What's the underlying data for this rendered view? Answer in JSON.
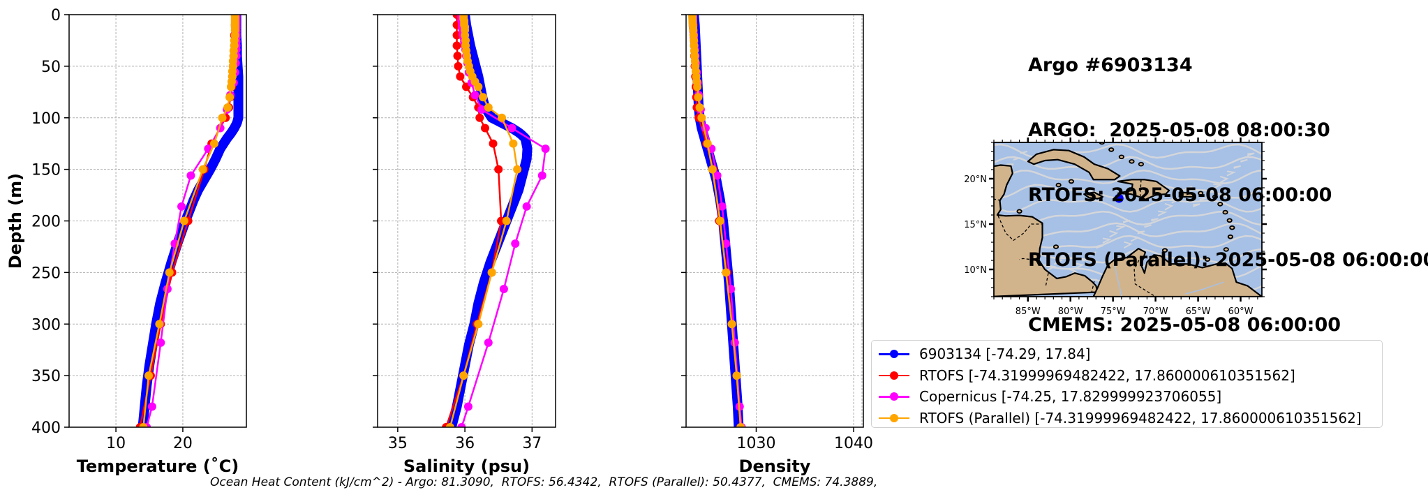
{
  "colors": {
    "argo": "#0000ff",
    "rtofs": "#ff0000",
    "copernicus": "#ff00ff",
    "rtofs_parallel": "#ffa500",
    "ocean": "#a6c0e6",
    "land": "#d2b48c",
    "streams": "#d9d9d9"
  },
  "title_lines": [
    "Argo #6903134",
    "ARGO:  2025-05-08 08:00:30",
    "RTOFS: 2025-05-08 06:00:00",
    "RTOFS (Parallel): 2025-05-08 06:00:00",
    "CMEMS: 2025-05-08 06:00:00"
  ],
  "footer": "Ocean Heat Content (kJ/cm^2) - Argo: 81.3090,  RTOFS: 56.4342,  RTOFS (Parallel): 50.4377,  CMEMS: 74.3889,",
  "legend": [
    {
      "key": "argo",
      "label": "6903134 [-74.29, 17.84]"
    },
    {
      "key": "rtofs",
      "label": "RTOFS [-74.31999969482422, 17.860000610351562]"
    },
    {
      "key": "copernicus",
      "label": "Copernicus [-74.25, 17.829999923706055]"
    },
    {
      "key": "rtofs_parallel",
      "label": "RTOFS (Parallel) [-74.31999969482422, 17.860000610351562]"
    }
  ],
  "map": {
    "x_ticks": [
      "85°W",
      "80°W",
      "75°W",
      "70°W",
      "65°W",
      "60°W"
    ],
    "x_tick_lons": [
      -85,
      -80,
      -75,
      -70,
      -65,
      -60
    ],
    "y_ticks": [
      "20°N",
      "15°N",
      "10°N"
    ],
    "y_tick_lats": [
      20,
      15,
      10
    ],
    "lon_range": [
      -89,
      -57.5
    ],
    "lat_range": [
      7,
      24
    ],
    "marker": {
      "lon": -74.29,
      "lat": 17.84
    }
  },
  "chart_data": [
    {
      "type": "line",
      "xlabel": "Temperature (˚C)",
      "ylabel": "Depth (m)",
      "xlim": [
        3,
        29.5
      ],
      "ylim": [
        400,
        0
      ],
      "xticks": [
        10,
        20
      ],
      "yticks": [
        0,
        50,
        100,
        150,
        200,
        250,
        300,
        350,
        400
      ],
      "grid": true,
      "series": [
        {
          "key": "argo",
          "name": "6903134 [-74.29, 17.84]",
          "dense": true,
          "depth": [
            0,
            10,
            20,
            30,
            40,
            50,
            60,
            70,
            80,
            90,
            100,
            105,
            110,
            115,
            120,
            130,
            140,
            150,
            160,
            170,
            180,
            190,
            200,
            220,
            240,
            260,
            280,
            300,
            320,
            340,
            360,
            380,
            400
          ],
          "values": [
            28.0,
            28.0,
            28.0,
            28.1,
            28.1,
            28.2,
            28.3,
            28.3,
            28.3,
            28.3,
            28.3,
            28.1,
            27.7,
            27.2,
            26.6,
            25.6,
            24.9,
            24.1,
            23.2,
            22.3,
            21.6,
            21.0,
            20.4,
            19.3,
            18.3,
            17.4,
            16.6,
            16.0,
            15.5,
            15.0,
            14.6,
            14.3,
            14.0
          ]
        },
        {
          "key": "rtofs",
          "name": "RTOFS [-74.31999969482422, 17.860000610351562]",
          "depth": [
            0,
            10,
            20,
            30,
            40,
            50,
            60,
            70,
            80,
            90,
            100,
            125,
            150,
            200,
            250,
            300,
            350,
            400
          ],
          "values": [
            27.8,
            27.8,
            27.7,
            27.7,
            27.6,
            27.5,
            27.4,
            27.3,
            27.1,
            26.9,
            26.4,
            24.3,
            23.2,
            20.8,
            18.4,
            16.7,
            15.2,
            13.6
          ]
        },
        {
          "key": "copernicus",
          "name": "Copernicus [-74.25, 17.829999923706055]",
          "depth": [
            0,
            1,
            2,
            3,
            5,
            6,
            7,
            8,
            9,
            11,
            13,
            16,
            19,
            22,
            26,
            30,
            34,
            40,
            47,
            56,
            66,
            78,
            92,
            110,
            130,
            156,
            186,
            222,
            266,
            318,
            380,
            400
          ],
          "values": [
            28.0,
            28.0,
            28.0,
            28.0,
            28.0,
            28.0,
            28.0,
            28.0,
            28.0,
            28.0,
            28.0,
            28.0,
            28.0,
            28.0,
            28.0,
            28.0,
            28.0,
            28.0,
            27.9,
            27.8,
            27.6,
            27.1,
            26.6,
            25.6,
            23.8,
            21.2,
            19.8,
            18.8,
            17.7,
            16.7,
            15.4,
            14.6
          ]
        },
        {
          "key": "rtofs_parallel",
          "name": "RTOFS (Parallel) [-74.31999969482422, 17.860000610351562]",
          "depth": [
            0,
            2,
            4,
            6,
            8,
            10,
            12,
            15,
            20,
            25,
            30,
            35,
            40,
            45,
            50,
            55,
            60,
            65,
            70,
            80,
            90,
            100,
            125,
            150,
            200,
            250,
            300,
            350,
            400
          ],
          "values": [
            27.8,
            27.8,
            27.8,
            27.8,
            27.8,
            27.8,
            27.8,
            27.8,
            27.8,
            27.7,
            27.7,
            27.6,
            27.6,
            27.5,
            27.5,
            27.4,
            27.4,
            27.3,
            27.2,
            27.0,
            26.7,
            25.9,
            24.7,
            23.0,
            20.2,
            18.0,
            16.5,
            14.9,
            14.1
          ]
        }
      ]
    },
    {
      "type": "line",
      "xlabel": "Salinity (psu)",
      "ylabel": "",
      "xlim": [
        34.7,
        37.35
      ],
      "ylim": [
        400,
        0
      ],
      "xticks": [
        35,
        36,
        37
      ],
      "yticks": [
        0,
        50,
        100,
        150,
        200,
        250,
        300,
        350,
        400
      ],
      "grid": true,
      "series": [
        {
          "key": "argo",
          "name": "6903134 [-74.29, 17.84]",
          "dense": true,
          "depth": [
            0,
            10,
            20,
            30,
            40,
            50,
            60,
            70,
            80,
            90,
            100,
            105,
            110,
            115,
            120,
            130,
            140,
            150,
            160,
            170,
            180,
            190,
            200,
            220,
            240,
            260,
            280,
            300,
            320,
            340,
            360,
            380,
            400
          ],
          "values": [
            36.0,
            36.02,
            36.05,
            36.08,
            36.12,
            36.16,
            36.2,
            36.23,
            36.26,
            36.3,
            36.4,
            36.55,
            36.7,
            36.82,
            36.9,
            36.93,
            36.92,
            36.88,
            36.84,
            36.8,
            36.74,
            36.68,
            36.62,
            36.5,
            36.38,
            36.28,
            36.2,
            36.14,
            36.06,
            36.0,
            35.94,
            35.88,
            35.8
          ]
        },
        {
          "key": "rtofs",
          "name": "RTOFS [-74.31999969482422, 17.860000610351562]",
          "depth": [
            0,
            10,
            20,
            30,
            40,
            50,
            60,
            70,
            80,
            90,
            100,
            110,
            125,
            150,
            200,
            250,
            300,
            350,
            400
          ],
          "values": [
            35.88,
            35.88,
            35.88,
            35.88,
            35.89,
            35.9,
            35.93,
            36.02,
            36.12,
            36.2,
            36.22,
            36.3,
            36.42,
            36.5,
            36.54,
            36.4,
            36.18,
            35.98,
            35.72
          ]
        },
        {
          "key": "copernicus",
          "name": "Copernicus [-74.25, 17.829999923706055]",
          "depth": [
            0,
            1,
            2,
            3,
            5,
            6,
            7,
            8,
            9,
            11,
            13,
            16,
            19,
            22,
            26,
            30,
            34,
            40,
            47,
            56,
            66,
            78,
            92,
            110,
            130,
            156,
            186,
            222,
            266,
            318,
            380,
            400
          ],
          "values": [
            35.95,
            35.95,
            35.95,
            35.95,
            35.95,
            35.95,
            35.96,
            35.96,
            35.96,
            35.96,
            35.96,
            35.97,
            35.97,
            35.98,
            35.99,
            36.0,
            36.01,
            36.02,
            36.04,
            36.06,
            36.1,
            36.15,
            36.25,
            36.7,
            37.2,
            37.15,
            36.92,
            36.75,
            36.58,
            36.35,
            36.05,
            35.95
          ]
        },
        {
          "key": "rtofs_parallel",
          "name": "RTOFS (Parallel) [-74.31999969482422, 17.860000610351562]",
          "depth": [
            0,
            2,
            4,
            6,
            8,
            10,
            12,
            15,
            20,
            25,
            30,
            35,
            40,
            45,
            50,
            55,
            60,
            65,
            70,
            80,
            90,
            100,
            125,
            150,
            200,
            250,
            300,
            350,
            400
          ],
          "values": [
            35.98,
            35.98,
            35.98,
            35.99,
            35.99,
            35.99,
            36.0,
            36.0,
            36.0,
            36.01,
            36.01,
            36.02,
            36.03,
            36.04,
            36.06,
            36.08,
            36.11,
            36.15,
            36.2,
            36.27,
            36.35,
            36.55,
            36.72,
            36.78,
            36.62,
            36.4,
            36.2,
            35.98,
            35.78
          ]
        }
      ]
    },
    {
      "type": "line",
      "xlabel": "Density",
      "ylabel": "",
      "xlim": [
        1022.8,
        1041
      ],
      "ylim": [
        400,
        0
      ],
      "xticks": [
        1030,
        1040
      ],
      "yticks": [
        0,
        50,
        100,
        150,
        200,
        250,
        300,
        350,
        400
      ],
      "grid": true,
      "series": [
        {
          "key": "argo",
          "name": "6903134 [-74.29, 17.84]",
          "dense": true,
          "depth": [
            0,
            10,
            20,
            30,
            40,
            50,
            60,
            70,
            80,
            90,
            100,
            110,
            120,
            130,
            140,
            150,
            160,
            170,
            180,
            190,
            200,
            220,
            240,
            260,
            280,
            300,
            320,
            340,
            360,
            380,
            400
          ],
          "values": [
            1023.6,
            1023.7,
            1023.75,
            1023.8,
            1023.85,
            1023.9,
            1023.95,
            1024.0,
            1024.05,
            1024.1,
            1024.2,
            1024.4,
            1024.7,
            1025.0,
            1025.3,
            1025.6,
            1025.9,
            1026.1,
            1026.3,
            1026.45,
            1026.6,
            1026.8,
            1027.0,
            1027.2,
            1027.35,
            1027.5,
            1027.65,
            1027.8,
            1027.95,
            1028.1,
            1028.2
          ]
        },
        {
          "key": "rtofs",
          "name": "RTOFS [-74.31999969482422, 17.860000610351562]",
          "depth": [
            0,
            10,
            20,
            30,
            40,
            50,
            60,
            70,
            80,
            90,
            100,
            125,
            150,
            200,
            250,
            300,
            350,
            400
          ],
          "values": [
            1023.5,
            1023.55,
            1023.6,
            1023.62,
            1023.65,
            1023.7,
            1023.75,
            1023.8,
            1023.85,
            1023.9,
            1024.1,
            1024.9,
            1025.6,
            1026.2,
            1027.0,
            1027.5,
            1028.0,
            1028.4
          ]
        },
        {
          "key": "copernicus",
          "name": "Copernicus [-74.25, 17.829999923706055]",
          "depth": [
            0,
            1,
            2,
            3,
            5,
            6,
            7,
            8,
            9,
            11,
            13,
            16,
            19,
            22,
            26,
            30,
            34,
            40,
            47,
            56,
            66,
            78,
            92,
            110,
            130,
            156,
            186,
            222,
            266,
            318,
            380,
            400
          ],
          "values": [
            1023.5,
            1023.5,
            1023.5,
            1023.5,
            1023.5,
            1023.5,
            1023.5,
            1023.5,
            1023.5,
            1023.5,
            1023.52,
            1023.55,
            1023.58,
            1023.6,
            1023.62,
            1023.65,
            1023.7,
            1023.75,
            1023.8,
            1023.9,
            1024.0,
            1024.1,
            1024.3,
            1024.8,
            1025.4,
            1026.0,
            1026.5,
            1026.9,
            1027.4,
            1027.8,
            1028.3,
            1028.5
          ]
        },
        {
          "key": "rtofs_parallel",
          "name": "RTOFS (Parallel) [-74.31999969482422, 17.860000610351562]",
          "depth": [
            0,
            2,
            4,
            6,
            8,
            10,
            12,
            15,
            20,
            25,
            30,
            35,
            40,
            45,
            50,
            55,
            60,
            65,
            70,
            80,
            90,
            100,
            125,
            150,
            200,
            250,
            300,
            350,
            400
          ],
          "values": [
            1023.45,
            1023.45,
            1023.46,
            1023.47,
            1023.48,
            1023.5,
            1023.52,
            1023.54,
            1023.57,
            1023.6,
            1023.62,
            1023.65,
            1023.68,
            1023.72,
            1023.75,
            1023.8,
            1023.85,
            1023.9,
            1023.95,
            1024.05,
            1024.2,
            1024.4,
            1025.0,
            1025.5,
            1026.3,
            1026.9,
            1027.5,
            1028.0,
            1028.4
          ]
        }
      ]
    }
  ]
}
